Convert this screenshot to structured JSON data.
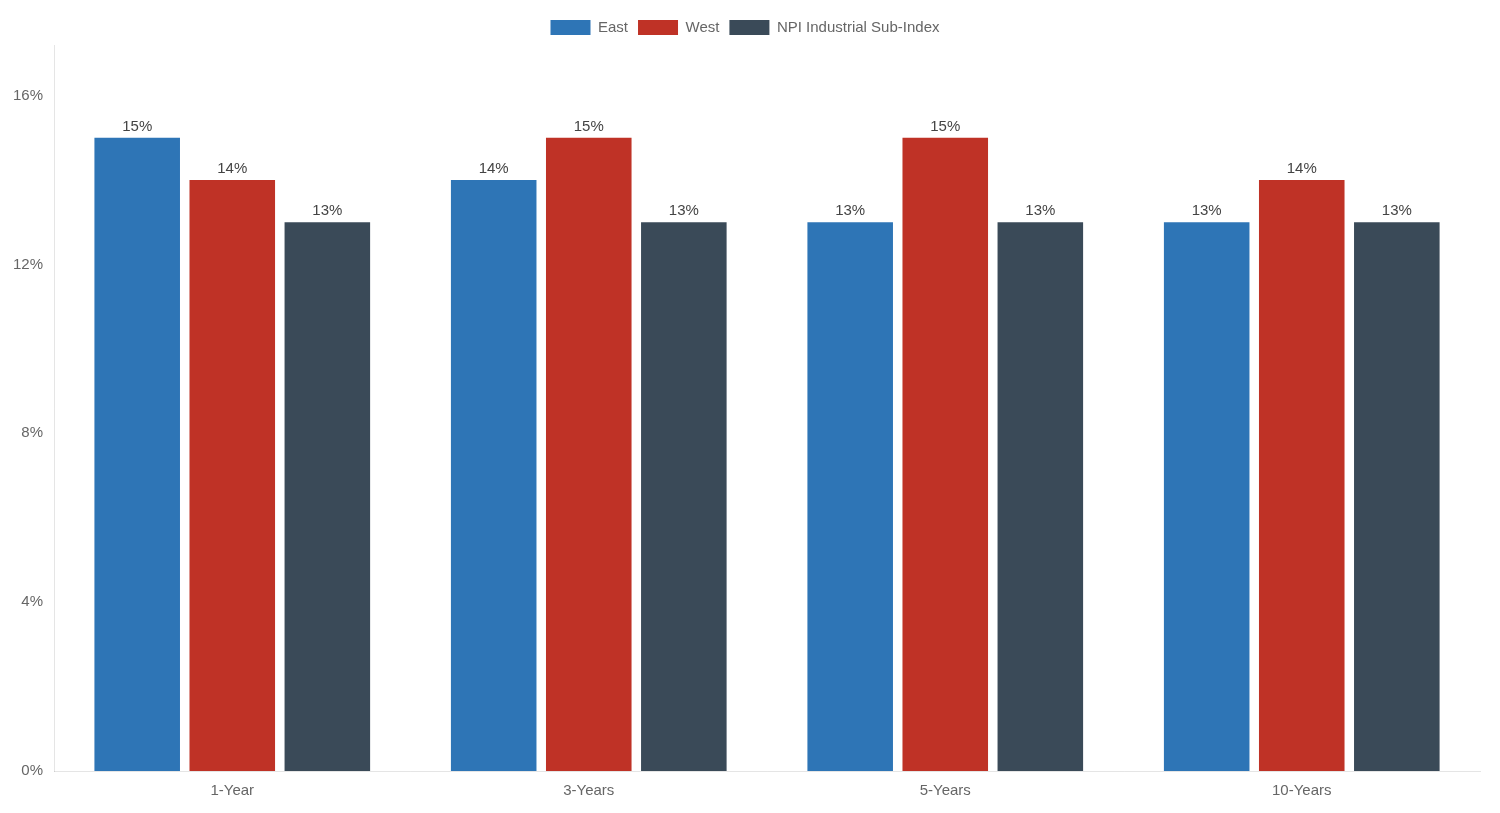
{
  "chart_data": {
    "type": "bar",
    "categories": [
      "1-Year",
      "3-Years",
      "5-Years",
      "10-Years"
    ],
    "series": [
      {
        "name": "East",
        "color": "#2e75b6",
        "values": [
          0.15,
          0.14,
          0.13,
          0.13
        ],
        "value_labels": [
          "15%",
          "14%",
          "13%",
          "13%"
        ]
      },
      {
        "name": "West",
        "color": "#bf3226",
        "values": [
          0.14,
          0.15,
          0.15,
          0.14
        ],
        "value_labels": [
          "14%",
          "15%",
          "15%",
          "14%"
        ]
      },
      {
        "name": "NPI Industrial Sub-Index",
        "color": "#3a4a58",
        "values": [
          0.13,
          0.13,
          0.13,
          0.13
        ],
        "value_labels": [
          "13%",
          "13%",
          "13%",
          "13%"
        ]
      }
    ],
    "ylim": [
      0,
      0.172
    ],
    "yticks": [
      {
        "value": 0,
        "label": "0%"
      },
      {
        "value": 0.04,
        "label": "4%"
      },
      {
        "value": 0.08,
        "label": "8%"
      },
      {
        "value": 0.12,
        "label": "12%"
      },
      {
        "value": 0.16,
        "label": "16%"
      }
    ],
    "grid": false,
    "legend": "top",
    "data_labels": true
  }
}
